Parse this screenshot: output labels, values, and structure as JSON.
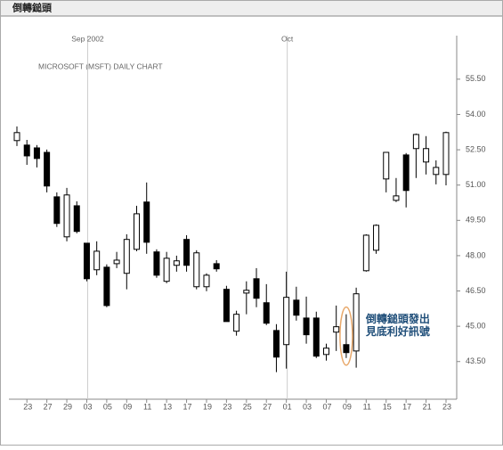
{
  "chart_data": {
    "type": "candlestick",
    "title": "倒轉鎚頭",
    "subtitle": "MICROSOFT (MSFT) DAILY CHART",
    "categories": [
      null,
      "23",
      null,
      "27",
      null,
      "29",
      null,
      "03",
      null,
      "05",
      null,
      "09",
      null,
      "11",
      null,
      "13",
      null,
      "17",
      null,
      "19",
      null,
      "23",
      null,
      "25",
      null,
      "27",
      null,
      "01",
      null,
      "03",
      null,
      "07",
      null,
      "09",
      null,
      "11",
      null,
      "15",
      null,
      "17",
      null,
      "21",
      null,
      "23"
    ],
    "open": [
      52.89,
      52.7,
      52.58,
      52.39,
      50.5,
      48.8,
      50.12,
      48.53,
      47.4,
      47.51,
      47.66,
      47.25,
      48.27,
      50.28,
      48.16,
      46.91,
      47.59,
      48.69,
      46.68,
      46.68,
      47.66,
      46.57,
      44.79,
      46.41,
      47.02,
      46.0,
      44.82,
      44.22,
      46.11,
      45.35,
      45.35,
      43.8,
      44.75,
      44.22,
      43.95,
      47.36,
      48.23,
      51.26,
      50.35,
      52.28,
      52.55,
      51.98,
      51.45,
      51.45
    ],
    "high": [
      53.49,
      52.92,
      52.7,
      52.51,
      50.69,
      50.88,
      50.31,
      48.53,
      48.61,
      47.63,
      48.16,
      48.91,
      50.12,
      51.11,
      48.27,
      48.16,
      48.0,
      48.87,
      48.23,
      47.25,
      47.81,
      46.72,
      45.66,
      46.91,
      47.47,
      46.79,
      45.09,
      47.32,
      46.68,
      46.26,
      45.62,
      44.26,
      45.88,
      45.51,
      46.64,
      48.91,
      49.33,
      52.39,
      51.3,
      52.36,
      53.19,
      53.08,
      52.05,
      53.27
    ],
    "low": [
      52.66,
      51.86,
      51.75,
      50.69,
      49.22,
      48.61,
      48.95,
      46.91,
      47.17,
      45.81,
      47.47,
      46.57,
      48.19,
      48.08,
      47.06,
      46.83,
      47.32,
      47.32,
      46.57,
      46.49,
      47.32,
      45.2,
      44.6,
      45.51,
      45.81,
      45.05,
      43.05,
      43.2,
      45.24,
      44.26,
      43.65,
      43.54,
      43.95,
      43.65,
      43.24,
      47.32,
      48.08,
      50.69,
      50.28,
      50.05,
      51.3,
      51.45,
      51.03,
      50.99
    ],
    "close": [
      53.23,
      52.24,
      52.13,
      50.96,
      49.37,
      50.58,
      49.03,
      47.02,
      48.19,
      45.88,
      47.81,
      48.69,
      49.78,
      48.57,
      47.17,
      47.89,
      47.78,
      47.59,
      48.12,
      47.17,
      47.44,
      45.2,
      45.51,
      46.53,
      46.19,
      45.13,
      43.69,
      46.23,
      45.47,
      44.64,
      43.73,
      44.07,
      44.98,
      43.88,
      46.38,
      48.87,
      49.29,
      52.39,
      50.54,
      50.77,
      53.15,
      52.55,
      51.75,
      53.23
    ],
    "up_color": "#ffffff",
    "down_color": "#000000",
    "ylim": [
      41.9,
      57.35
    ],
    "yticks": [
      {
        "value": 43.5,
        "label": "43.50"
      },
      {
        "value": 45,
        "label": "45.00"
      },
      {
        "value": 46.5,
        "label": "46.50"
      },
      {
        "value": 48,
        "label": "48.00"
      },
      {
        "value": 49.5,
        "label": "49.50"
      },
      {
        "value": 51,
        "label": "51.00"
      },
      {
        "value": 52.5,
        "label": "52.50"
      },
      {
        "value": 54,
        "label": "54.00"
      },
      {
        "value": 55.5,
        "label": "55.50"
      }
    ],
    "period_markers": [
      {
        "label": "Sep 2002",
        "category_index": 7
      },
      {
        "label": "Oct",
        "category_index": 27
      }
    ],
    "callout": {
      "lines": [
        "倒轉鎚頭發出",
        "見底利好訊號"
      ],
      "category_index": 33,
      "color": "#1f4e79",
      "ring_color": "#e8a86a"
    }
  }
}
